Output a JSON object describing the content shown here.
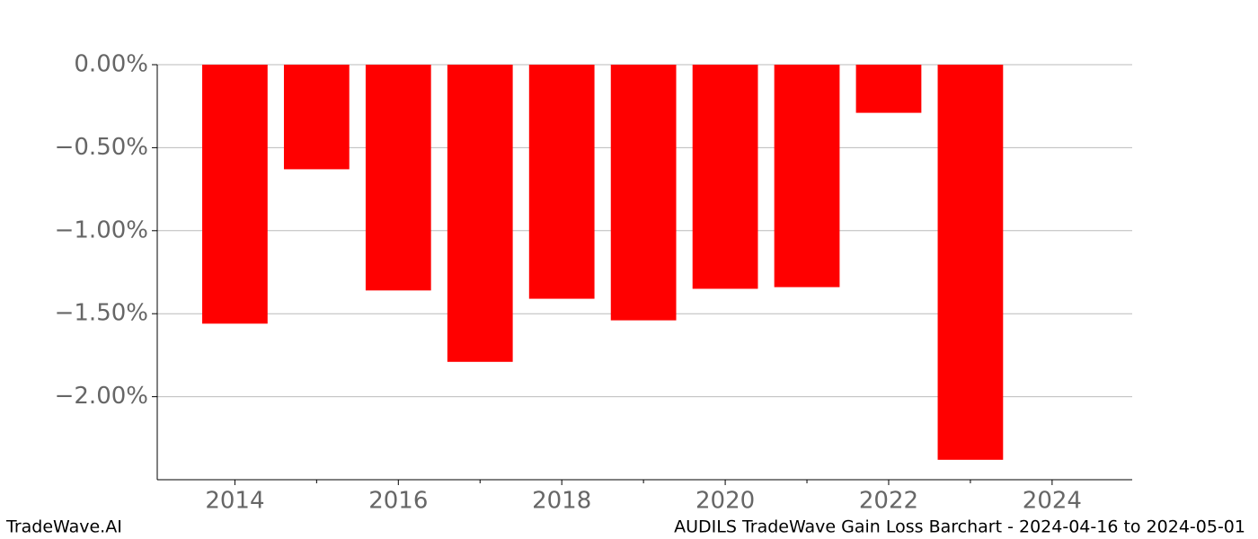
{
  "chart_data": {
    "type": "bar",
    "x": [
      2014,
      2015,
      2016,
      2017,
      2018,
      2019,
      2020,
      2021,
      2022,
      2023
    ],
    "values": [
      -1.56,
      -0.63,
      -1.36,
      -1.79,
      -1.41,
      -1.54,
      -1.35,
      -1.34,
      -0.29,
      -2.38
    ],
    "color": "#ff0000",
    "bar_width": 0.8,
    "xlim": [
      2013.05,
      2024.98
    ],
    "xticks": [
      2014,
      2016,
      2018,
      2020,
      2022,
      2024
    ],
    "xminorticks": [
      2015,
      2017,
      2019,
      2021,
      2023
    ],
    "ylim": [
      -2.5,
      0
    ],
    "yticks": [
      {
        "value": 0,
        "label": "0.00%"
      },
      {
        "value": -0.5,
        "label": "−0.50%"
      },
      {
        "value": -1.0,
        "label": "−1.00%"
      },
      {
        "value": -1.5,
        "label": "−1.50%"
      },
      {
        "value": -2.0,
        "label": "−2.00%"
      }
    ],
    "grid": true
  },
  "footer": {
    "left": "TradeWave.AI",
    "right": "AUDILS TradeWave Gain Loss Barchart - 2024-04-16 to 2024-05-01"
  }
}
